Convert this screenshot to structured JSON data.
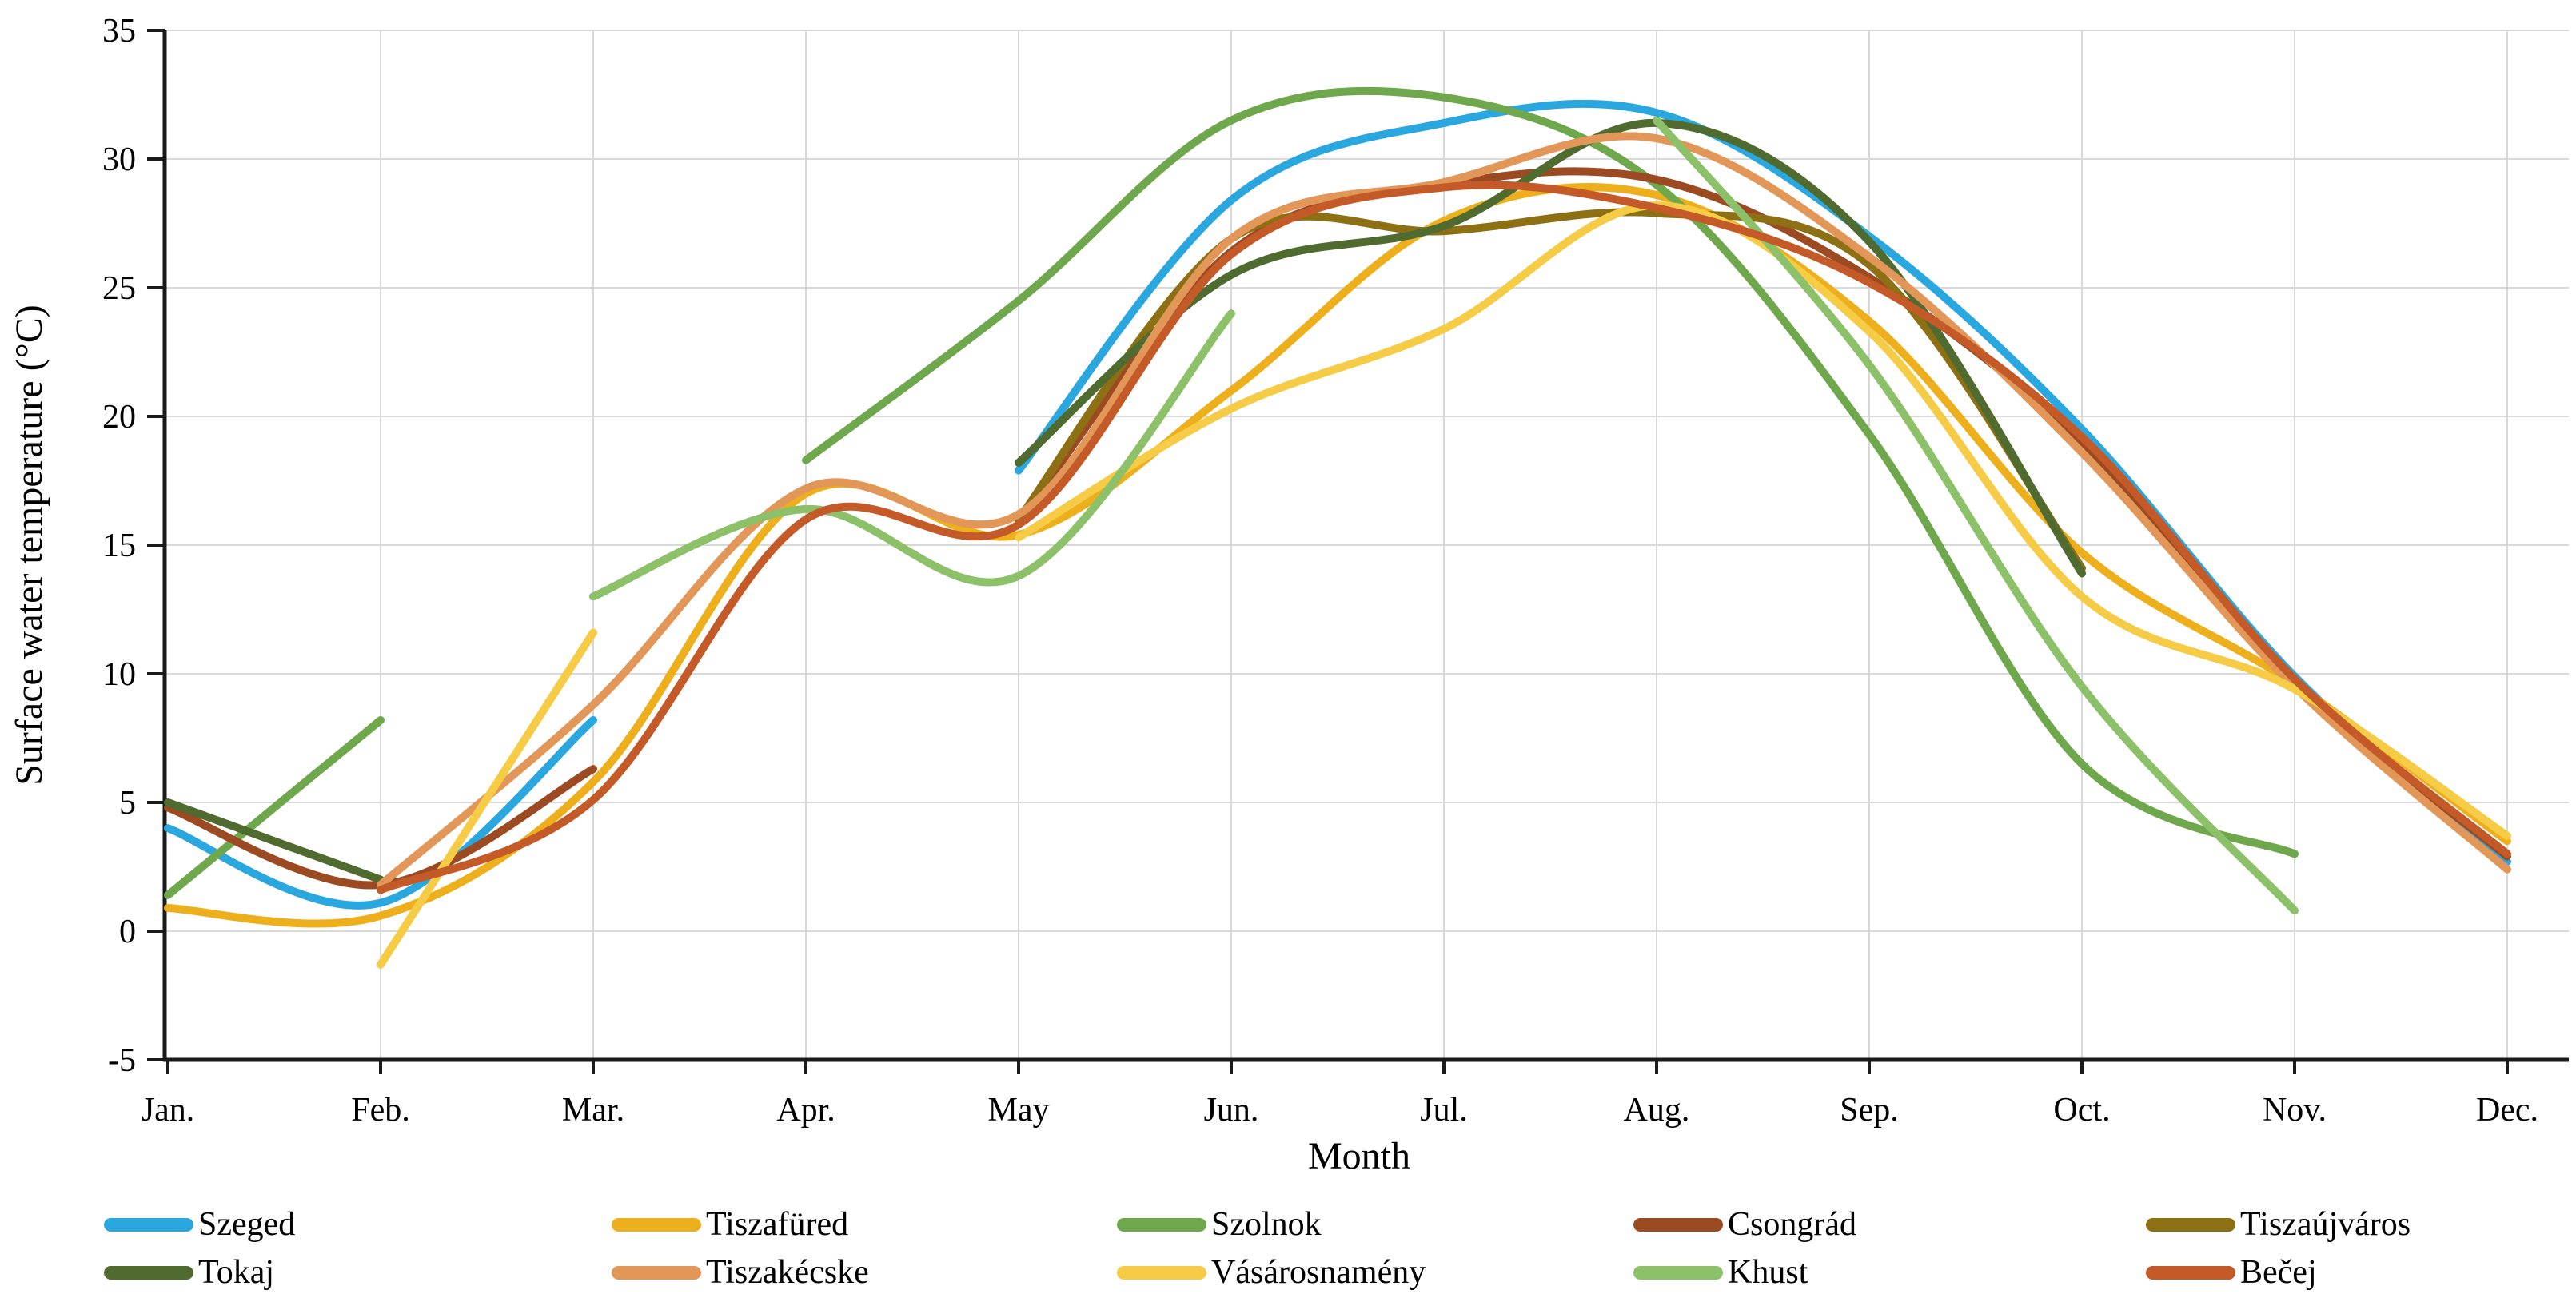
{
  "chart_data": {
    "type": "line",
    "title": "",
    "xlabel": "Month",
    "ylabel": "Surface water temperature (°C)",
    "categories": [
      "Jan.",
      "Feb.",
      "Mar.",
      "Apr.",
      "May",
      "Jun.",
      "Jul.",
      "Aug.",
      "Sep.",
      "Oct.",
      "Nov.",
      "Dec."
    ],
    "ylim": [
      -5,
      35
    ],
    "ytick_step": 5,
    "ytick_labels": [
      "35",
      "30",
      "25",
      "20",
      "15",
      "10",
      "5",
      "0",
      "-5"
    ],
    "grid": "on",
    "grid_color": "#D9D9D9",
    "axis_color": "#1a1a1a",
    "legend_position": "bottom",
    "series": [
      {
        "name": "Szeged",
        "color": "#2AA7DE",
        "values": [
          4.0,
          1.1,
          8.2,
          null,
          17.9,
          28.4,
          31.4,
          31.8,
          27.0,
          19.5,
          9.9,
          2.7
        ]
      },
      {
        "name": "Tiszafüred",
        "color": "#EDB01C",
        "values": [
          0.9,
          0.6,
          5.8,
          17.0,
          15.4,
          21.0,
          27.6,
          28.6,
          23.7,
          14.7,
          9.6,
          3.5
        ]
      },
      {
        "name": "Szolnok",
        "color": "#6FA84C",
        "values": [
          1.4,
          8.2,
          null,
          18.3,
          24.5,
          31.5,
          32.4,
          29.0,
          19.3,
          6.5,
          3.0,
          null
        ]
      },
      {
        "name": "Csongrád",
        "color": "#9C4A22",
        "values": [
          4.8,
          1.8,
          6.3,
          null,
          15.9,
          26.4,
          29.0,
          29.2,
          25.4,
          19.0,
          9.7,
          2.9
        ]
      },
      {
        "name": "Tiszaújváros",
        "color": "#8E7014",
        "values": [
          null,
          null,
          null,
          null,
          16.0,
          26.9,
          27.2,
          27.9,
          25.9,
          14.1,
          null,
          null
        ]
      },
      {
        "name": "Tokaj",
        "color": "#4F6B2F",
        "values": [
          5.0,
          2.0,
          null,
          null,
          18.2,
          25.5,
          27.4,
          31.4,
          26.8,
          13.9,
          null,
          null
        ]
      },
      {
        "name": "Tiszakécske",
        "color": "#E29658",
        "values": [
          null,
          1.8,
          8.8,
          17.2,
          16.2,
          26.9,
          29.1,
          30.8,
          26.2,
          18.6,
          9.5,
          2.4
        ]
      },
      {
        "name": "Vásárosnamény",
        "color": "#F6CB46",
        "values": [
          null,
          -1.3,
          11.6,
          null,
          15.3,
          20.3,
          23.4,
          28.2,
          23.3,
          13.0,
          9.4,
          3.7
        ]
      },
      {
        "name": "Khust",
        "color": "#8CC169",
        "values": [
          null,
          null,
          13.0,
          16.4,
          13.8,
          24.0,
          null,
          31.5,
          22.0,
          9.5,
          0.8,
          null
        ]
      },
      {
        "name": "Bečej",
        "color": "#C45A28",
        "values": [
          null,
          1.6,
          5.1,
          16.0,
          15.8,
          26.3,
          28.9,
          28.1,
          25.2,
          19.2,
          9.8,
          3.0
        ]
      }
    ]
  }
}
